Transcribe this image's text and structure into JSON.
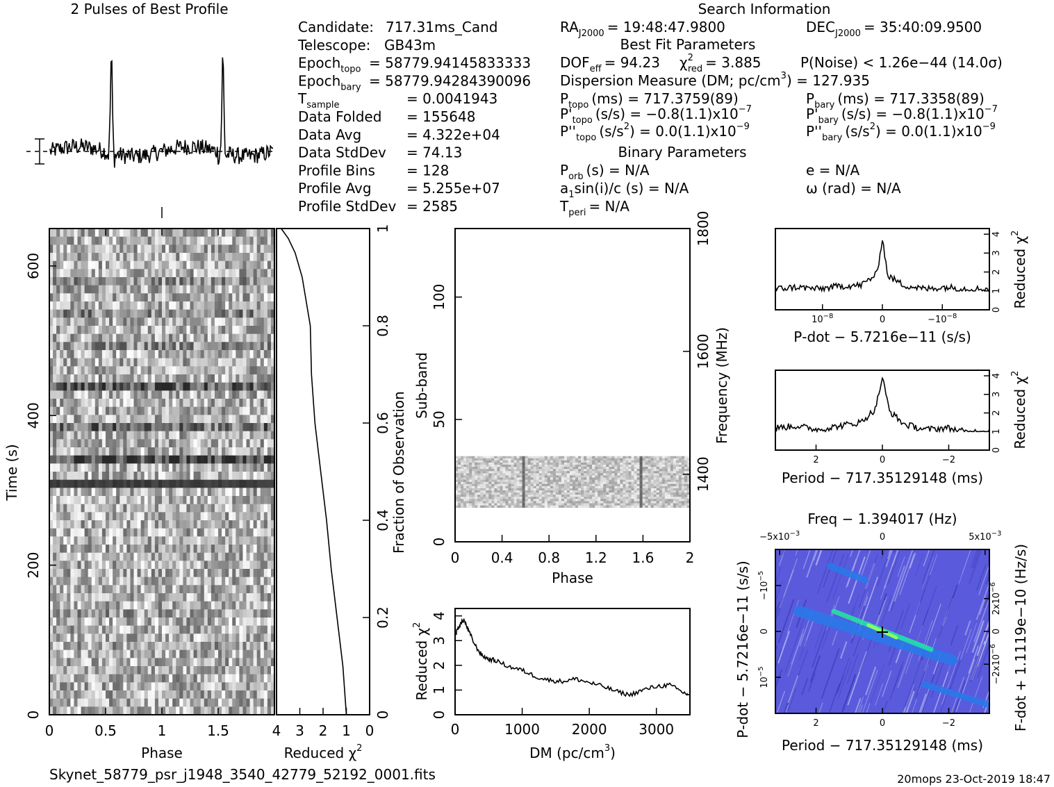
{
  "title_profile": "2 Pulses of Best Profile",
  "title_search": "Search Information",
  "subtitle_best_fit": "Best Fit Parameters",
  "subtitle_binary": "Binary Parameters",
  "footer_file": "Skynet_58779_psr_j1948_3540_42779_52192_0001.fits",
  "footer_stamp": "20mops  23‑Oct‑2019 18:47",
  "info_left": [
    {
      "label": "Candidate:",
      "value": "717.31ms_Cand"
    },
    {
      "label": "Telescope:",
      "value": "GB43m"
    },
    {
      "label": "Epoch",
      "sub": "topo",
      "value": "= 58779.94145833333"
    },
    {
      "label": "Epoch",
      "sub": "bary",
      "value": "= 58779.94284390096"
    },
    {
      "label": "T",
      "sub": "sample",
      "value": "= 0.0041943"
    },
    {
      "label": "Data Folded",
      "value": "= 155648"
    },
    {
      "label": "Data Avg",
      "value": "= 4.322e+04"
    },
    {
      "label": "Data StdDev",
      "value": "= 74.13"
    },
    {
      "label": "Profile Bins",
      "value": "= 128"
    },
    {
      "label": "Profile Avg",
      "value": "= 5.255e+07"
    },
    {
      "label": "Profile StdDev",
      "value": "= 2585"
    }
  ],
  "search": {
    "ra_label": "RA",
    "ra_sub": "J2000",
    "ra_value": "= 19:48:47.9800",
    "dec_label": "DEC",
    "dec_sub": "J2000",
    "dec_value": "= 35:40:09.9500",
    "dof_label": "DOF",
    "dof_sub": "eff",
    "dof_value": "= 94.23",
    "chi_label": "χ",
    "chi_sup": "2",
    "chi_sub": "red",
    "chi_value": "= 3.885",
    "pnoise": "P(Noise) < 1.26e−44   (14.0σ)",
    "dm_line": "Dispersion Measure (DM; pc/cm",
    "dm_sup": "3",
    "dm_value": ") = 127.935",
    "ptopo_label": "P",
    "ptopo_sub": "topo",
    "ptopo_value": "(ms) =  717.3759(89)",
    "pbary_label": "P",
    "pbary_sub": "bary",
    "pbary_value": "(ms) =  717.3358(89)",
    "pdtopo_label": "P'",
    "pdtopo_sub": "topo",
    "pdtopo_value": "(s/s) = −0.8(1.1)x10",
    "pdtopo_exp": "−7",
    "pdbary_label": "P'",
    "pdbary_sub": "bary",
    "pdbary_value": "(s/s) = −0.8(1.1)x10",
    "pdbary_exp": "−7",
    "pddtopo_label": "P''",
    "pddtopo_sub": "topo",
    "pddtopo_value": "(s/s",
    "pddtopo_sup": "2",
    "pddtopo_rest": ") = 0.0(1.1)x10",
    "pddtopo_exp": "−9",
    "pddbary_label": "P''",
    "pddbary_sub": "bary",
    "pddbary_value": "(s/s",
    "pddbary_sup": "2",
    "pddbary_rest": ") = 0.0(1.1)x10",
    "pddbary_exp": "−9",
    "porb_label": "P",
    "porb_sub": "orb",
    "porb_value": "(s) = N/A",
    "e_line": "e = N/A",
    "a1_label": "a",
    "a1_sub": "1",
    "a1_value": "sin(i)/c (s) = N/A",
    "omega_line": "ω (rad) = N/A",
    "tperi_label": "T",
    "tperi_sub": "peri",
    "tperi_value": "= N/A"
  },
  "axes": {
    "time_label": "Time (s)",
    "phase_label": "Phase",
    "redchi_label": "Reduced χ",
    "redchi_sup": "2",
    "fraction_label": "Fraction of Observation",
    "subband_label": "Sub‑band",
    "freq_label": "Frequency (MHz)",
    "dm_label": "DM (pc/cm",
    "dm_sup": "3",
    "dm_close": ")",
    "pdot_label": "P‑dot − 5.7216e−11 (s/s)",
    "period_label": "Period − 717.35129148 (ms)",
    "freq_top_label": "Freq − 1.394017 (Hz)",
    "pdot_side_label": "P‑dot − 5.7216e−11 (s/s)",
    "fdot_label": "F‑dot + 1.1119e−10 (Hz/s)"
  },
  "ticks": {
    "time_y": [
      "0",
      "200",
      "400",
      "600"
    ],
    "phase_x": [
      "0",
      "0.5",
      "1",
      "1.5"
    ],
    "redchi_x": [
      "4",
      "3",
      "2",
      "1",
      "0"
    ],
    "fraction_y": [
      "0",
      "0.2",
      "0.4",
      "0.6",
      "0.8",
      "1"
    ],
    "subband_y": [
      "0",
      "50",
      "100"
    ],
    "freq_y": [
      "1400",
      "1600",
      "1800"
    ],
    "phase2_x": [
      "0",
      "0.4",
      "0.8",
      "1.2",
      "1.6",
      "2"
    ],
    "dm_x": [
      "0",
      "1000",
      "2000",
      "3000"
    ],
    "dm_redchi_y": [
      "0",
      "1",
      "2",
      "3",
      "4"
    ],
    "pdot_x": [
      "10",
      "0",
      "−10"
    ],
    "pdot_x_exp": "−8",
    "small_redchi_y": [
      "0",
      "1",
      "2",
      "3",
      "4"
    ],
    "period_x": [
      "2",
      "0",
      "−2"
    ],
    "freq_top_x": [
      "−5x10",
      "0",
      "5x10"
    ],
    "freq_top_exp": "−3",
    "pdot_side_y": [
      "10",
      "0",
      "−10"
    ],
    "pdot_side_exp": "−5",
    "fdot_y": [
      "2x10",
      "0",
      "−2x10"
    ],
    "fdot_exp": "−6"
  },
  "colors": {
    "stripe_dark": "#111111",
    "heat_low": "#5a5adc",
    "heat_mid": "#2a78e8",
    "heat_high": "#25e0a6",
    "heat_peak": "#98ff5a",
    "background": "#ffffff"
  },
  "chart_data": [
    {
      "type": "line",
      "title": "2 Pulses of Best Profile",
      "x_range": [
        0,
        2
      ],
      "series": [
        {
          "values": [
            0.15,
            0.2,
            0.12,
            0.25,
            0.18,
            0.3,
            0.22,
            1.0,
            0.25,
            0.2,
            0.3,
            0.18,
            0.15,
            0.24,
            0.2,
            0.35,
            0.28,
            1.0,
            0.26,
            0.22
          ]
        }
      ]
    },
    {
      "type": "heatmap",
      "xlabel": "Phase",
      "ylabel": "Time (s)",
      "xlim": [
        0,
        2
      ],
      "ylim": [
        0,
        650
      ]
    },
    {
      "type": "line",
      "xlabel": "Reduced χ²",
      "ylabel": "Fraction of Observation",
      "xlim": [
        4,
        0
      ],
      "ylim": [
        0,
        1
      ],
      "x": [
        1.0,
        1.15,
        1.4,
        1.65,
        1.85,
        2.1,
        2.35,
        2.5,
        2.55,
        2.9,
        3.2,
        3.5,
        3.8
      ],
      "y": [
        0.0,
        0.1,
        0.2,
        0.3,
        0.4,
        0.5,
        0.6,
        0.7,
        0.8,
        0.9,
        0.95,
        0.98,
        1.0
      ]
    },
    {
      "type": "heatmap",
      "xlabel": "Phase",
      "ylabel": "Sub‑band",
      "xlim": [
        0,
        2
      ],
      "ylim": [
        0,
        128
      ],
      "y2label": "Frequency (MHz)",
      "data_subband_range": [
        14,
        35
      ]
    },
    {
      "type": "line",
      "xlabel": "DM (pc/cm³)",
      "ylabel": "Reduced χ²",
      "xlim": [
        0,
        3500
      ],
      "ylim": [
        0,
        4.3
      ],
      "x": [
        0,
        60,
        130,
        200,
        300,
        400,
        500,
        600,
        800,
        1000,
        1200,
        1400,
        1600,
        1800,
        2000,
        2200,
        2400,
        2600,
        2800,
        3000,
        3200,
        3400,
        3500
      ],
      "y": [
        3.2,
        3.6,
        3.85,
        3.4,
        2.8,
        2.4,
        2.25,
        2.2,
        1.95,
        1.8,
        1.55,
        1.4,
        1.35,
        1.45,
        1.3,
        1.15,
        0.95,
        0.8,
        1.0,
        1.15,
        1.2,
        0.9,
        0.8
      ]
    },
    {
      "type": "line",
      "xlabel": "P‑dot − 5.7216e−11 (s/s)",
      "ylabel": "Reduced χ²",
      "ylim": [
        0,
        4.3
      ],
      "x": [
        -1.0,
        -0.8,
        -0.6,
        -0.4,
        -0.2,
        -0.05,
        0.0,
        0.05,
        0.2,
        0.4,
        0.6,
        0.8,
        1.0
      ],
      "y": [
        1.1,
        1.2,
        1.1,
        1.25,
        1.3,
        1.9,
        3.8,
        1.8,
        1.3,
        1.1,
        1.2,
        1.1,
        1.1
      ]
    },
    {
      "type": "line",
      "xlabel": "Period − 717.35129148 (ms)",
      "ylabel": "Reduced χ²",
      "ylim": [
        0,
        4.3
      ],
      "x": [
        3.0,
        2.4,
        1.8,
        1.2,
        0.6,
        0.2,
        0.0,
        -0.2,
        -0.6,
        -1.2,
        -1.8,
        -2.4,
        -3.0
      ],
      "y": [
        1.2,
        1.3,
        1.1,
        1.3,
        1.5,
        2.2,
        3.9,
        2.1,
        1.4,
        1.1,
        1.2,
        0.95,
        1.05
      ]
    },
    {
      "type": "heatmap",
      "xlabel": "Period − 717.35129148 (ms)",
      "ylabel": "P‑dot − 5.7216e−11 (s/s)",
      "x2label": "Freq − 1.394017 (Hz)",
      "y2label": "F‑dot + 1.1119e−10 (Hz/s)"
    }
  ]
}
